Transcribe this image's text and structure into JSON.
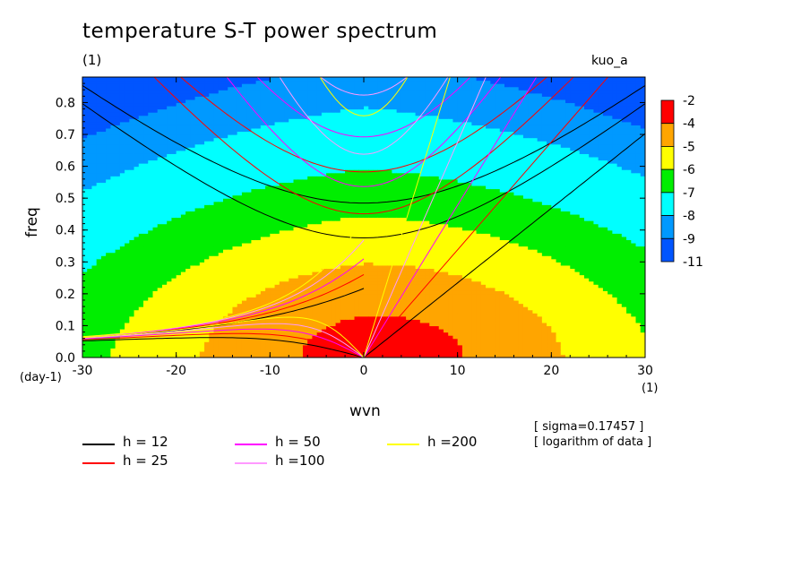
{
  "chart_data": {
    "type": "heatmap",
    "title": "temperature S-T power spectrum",
    "units_label": "(1)",
    "model_label": "kuo_a",
    "xlabel": "wvn",
    "ylabel": "freq",
    "x_unit": "(1)",
    "y_unit": "(day-1)",
    "xlim": [
      -30,
      30
    ],
    "ylim": [
      0.0,
      0.88
    ],
    "x_ticks": [
      -30,
      -20,
      -10,
      0,
      10,
      20,
      30
    ],
    "x_tick_labels": [
      "-30",
      "-20",
      "-10",
      "0",
      "10",
      "20",
      "30"
    ],
    "y_ticks": [
      0.0,
      0.1,
      0.2,
      0.3,
      0.4,
      0.5,
      0.6,
      0.7,
      0.8
    ],
    "y_tick_labels": [
      "0.0",
      "0.1",
      "0.2",
      "0.3",
      "0.4",
      "0.5",
      "0.6",
      "0.7",
      "0.8"
    ],
    "colorbar": {
      "boundary_labels": [
        "-2",
        "-4",
        "-5",
        "-6",
        "-7",
        "-8",
        "-9",
        "-11"
      ],
      "colors": [
        "#ff0000",
        "#ffa500",
        "#ffff00",
        "#00ee00",
        "#00ffff",
        "#0099ff",
        "#0055ff"
      ]
    },
    "annotations": [
      "[ sigma=0.17457 ]",
      "[ logarithm of data ]"
    ],
    "dispersion_curves": [
      {
        "label": "h = 12",
        "h": 12,
        "color": "#000000"
      },
      {
        "label": "h = 25",
        "h": 25,
        "color": "#ff0000"
      },
      {
        "label": "h = 50",
        "h": 50,
        "color": "#ff00ff"
      },
      {
        "label": "h =100",
        "h": 100,
        "color": "#ff99ff"
      },
      {
        "label": "h =200",
        "h": 200,
        "color": "#ffff00"
      }
    ]
  }
}
